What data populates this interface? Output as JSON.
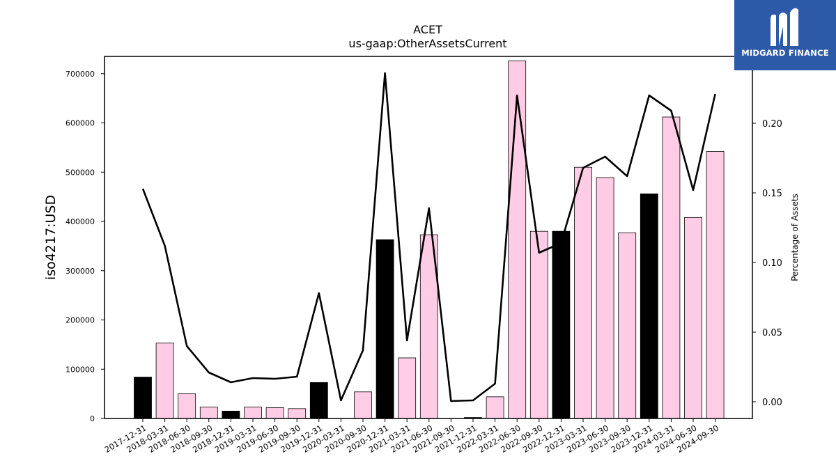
{
  "chart_data": {
    "type": "bar",
    "title": "ACET",
    "subtitle": "us-gaap:OtherAssetsCurrent",
    "ylabel": "iso4217:USD",
    "y2label": "Percentage of Assets",
    "ylim": [
      0,
      735000
    ],
    "y2lim": [
      -0.012,
      0.248
    ],
    "yticks": [
      0,
      100000,
      200000,
      300000,
      400000,
      500000,
      600000,
      700000
    ],
    "y2ticks": [
      "0.00",
      "0.05",
      "0.10",
      "0.15",
      "0.20"
    ],
    "categories": [
      "2017-12-31",
      "2018-03-31",
      "2018-06-30",
      "2018-09-30",
      "2018-12-31",
      "2019-03-31",
      "2019-06-30",
      "2019-09-30",
      "2019-12-31",
      "2020-03-31",
      "2020-09-30",
      "2020-12-31",
      "2021-03-31",
      "2021-06-30",
      "2021-09-30",
      "2021-12-31",
      "2022-03-31",
      "2022-06-30",
      "2022-09-30",
      "2022-12-31",
      "2023-03-31",
      "2023-06-30",
      "2023-09-30",
      "2023-12-31",
      "2024-03-31",
      "2024-06-30",
      "2024-09-30"
    ],
    "values": [
      84000,
      153000,
      50000,
      23000,
      15000,
      23000,
      22000,
      20000,
      73000,
      0,
      54000,
      363000,
      123000,
      373000,
      0,
      2000,
      44000,
      726000,
      380000,
      380000,
      510000,
      489000,
      377000,
      456000,
      612000,
      408000,
      542000
    ],
    "bar_colors": [
      "#000000",
      "#ffccE5",
      "#ffcce5",
      "#ffcce5",
      "#000000",
      "#ffcce5",
      "#ffcce5",
      "#ffcce5",
      "#000000",
      "#ffcce5",
      "#ffcce5",
      "#000000",
      "#ffcce5",
      "#ffcce5",
      "#ffcce5",
      "#000000",
      "#ffcce5",
      "#ffcce5",
      "#ffcce5",
      "#000000",
      "#ffcce5",
      "#ffcce5",
      "#ffcce5",
      "#000000",
      "#ffcce5",
      "#ffcce5",
      "#ffcce5"
    ],
    "line_values": [
      0.153,
      0.112,
      0.04,
      0.021,
      0.014,
      0.017,
      0.0165,
      0.018,
      0.078,
      0.001,
      0.037,
      0.236,
      0.044,
      0.139,
      0.0005,
      0.001,
      0.013,
      0.22,
      0.107,
      0.114,
      0.168,
      0.176,
      0.162,
      0.22,
      0.209,
      0.152,
      0.221
    ],
    "colors": {
      "pink": "#ffcce5",
      "black": "#000000",
      "line": "#000000"
    }
  },
  "logo": {
    "text": "MIDGARD FINANCE",
    "background": "#2c5aa8"
  }
}
